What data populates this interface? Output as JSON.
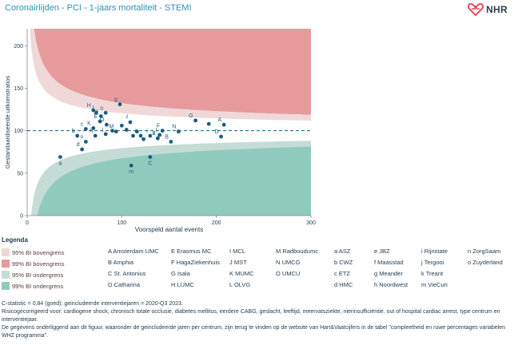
{
  "title": "Coronairlijden - PCI - 1-jaars mortaliteit - STEMI",
  "logo": {
    "text": "NHR",
    "icon": "nhr-heart-icon",
    "color": "#e0505a"
  },
  "colors": {
    "bi95_upper": "#f0d8d8",
    "bi99_upper": "#e69a9c",
    "bi95_lower": "#c5dbd5",
    "bi99_lower": "#8fcbbc",
    "points": "#1a5c80",
    "reference": "#1a5c80",
    "text_teal": "#2a93b8"
  },
  "chart_data": {
    "type": "scatter",
    "xlabel": "Voorspeld aantal events",
    "ylabel": "Gestandaardiseerde uitkomstratios",
    "xlim": [
      0,
      300
    ],
    "ylim": [
      0,
      220
    ],
    "xticks": [
      "0",
      "100",
      "200",
      "300"
    ],
    "yticks": [
      "0",
      "50",
      "100",
      "150",
      "200"
    ],
    "reference_line": 100,
    "points": [
      {
        "label": "a",
        "x": 35,
        "y": 69
      },
      {
        "label": "b",
        "x": 53,
        "y": 94
      },
      {
        "label": "c",
        "x": 62,
        "y": 102
      },
      {
        "label": "d",
        "x": 58,
        "y": 78
      },
      {
        "label": "e",
        "x": 78,
        "y": 117
      },
      {
        "label": "f",
        "x": 109,
        "y": 110
      },
      {
        "label": "g",
        "x": 98,
        "y": 131
      },
      {
        "label": "h",
        "x": 72,
        "y": 94
      },
      {
        "label": "i",
        "x": 130,
        "y": 94
      },
      {
        "label": "j",
        "x": 83,
        "y": 96
      },
      {
        "label": "k",
        "x": 138,
        "y": 91
      },
      {
        "label": "l",
        "x": 73,
        "y": 121
      },
      {
        "label": "m",
        "x": 110,
        "y": 59
      },
      {
        "label": "n",
        "x": 62,
        "y": 87
      },
      {
        "label": "o",
        "x": 83,
        "y": 121
      },
      {
        "label": "A",
        "x": 208,
        "y": 107
      },
      {
        "label": "B",
        "x": 152,
        "y": 87
      },
      {
        "label": "C",
        "x": 130,
        "y": 69
      },
      {
        "label": "D",
        "x": 205,
        "y": 93
      },
      {
        "label": "E",
        "x": 77,
        "y": 111
      },
      {
        "label": "F",
        "x": 143,
        "y": 100
      },
      {
        "label": "G",
        "x": 178,
        "y": 112
      },
      {
        "label": "H",
        "x": 70,
        "y": 124
      },
      {
        "label": "I",
        "x": 140,
        "y": 95
      },
      {
        "label": "J",
        "x": 138,
        "y": 91
      },
      {
        "label": "K",
        "x": 70,
        "y": 103
      },
      {
        "label": "L",
        "x": 120,
        "y": 94
      },
      {
        "label": "M",
        "x": 94,
        "y": 99
      },
      {
        "label": "N",
        "x": 160,
        "y": 99
      },
      {
        "label": "O",
        "x": 84,
        "y": 107
      },
      {
        "label": "",
        "x": 112,
        "y": 94
      },
      {
        "label": "",
        "x": 116,
        "y": 99
      },
      {
        "label": "",
        "x": 192,
        "y": 108
      },
      {
        "label": "",
        "x": 105,
        "y": 101
      },
      {
        "label": "",
        "x": 123,
        "y": 90
      },
      {
        "label": "",
        "x": 100,
        "y": 106
      },
      {
        "label": "",
        "x": 90,
        "y": 100
      }
    ]
  },
  "legend": {
    "title": "Legenda",
    "bands": [
      {
        "label": "95% BI bovengrens",
        "color_key": "bi95_upper"
      },
      {
        "label": "99% BI bovengrens",
        "color_key": "bi99_upper"
      },
      {
        "label": "95% BI ondergrens",
        "color_key": "bi95_lower"
      },
      {
        "label": "99% BI ondergrens",
        "color_key": "bi99_lower"
      }
    ],
    "columns": [
      [
        "A Amsterdam UMC",
        "B Amphia",
        "C St. Antonius",
        "D Catharina"
      ],
      [
        "E Erasmus MC",
        "F HagaZiekenhuis",
        "G Isala",
        "H LUMC"
      ],
      [
        "I MCL",
        "J MST",
        "K MUMC",
        "L OLVG"
      ],
      [
        "M Radboudumc",
        "N UMCG",
        "O UMCU"
      ],
      [
        "a ASZ",
        "b CWZ",
        "c ETZ",
        "d HMC"
      ],
      [
        "e JBZ",
        "f Maasstad",
        "g Meander",
        "h Noordwest"
      ],
      [
        "i Rijnstate",
        "j Tergooi",
        "k Treant",
        "m VieCuri"
      ],
      [
        "n ZorgSaam",
        "o Zuyderland"
      ]
    ]
  },
  "notes": [
    "C-statistic = 0,84 (goed); geincludeerde interventiejaren = 2020-Q3 2023.",
    "Risicogecorrigeerd voor: cardiogene shock, chronisch totale occlusie, diabetes mellitus, eerdere CABG, geslacht, leeftijd, meervatsziekte, nierinsufficiëntie, out of hospital cardiac arrest, type centrum en interventiejaar.",
    "De gegevens onderliggend aan dit figuur, waaronder de geincludeerde jaren per centrum, zijn terug te vinden op de website van Hart&Vaatcijfers in de tabel \"compleetheid en ruwe percentages variabelen WHZ programma\"."
  ]
}
